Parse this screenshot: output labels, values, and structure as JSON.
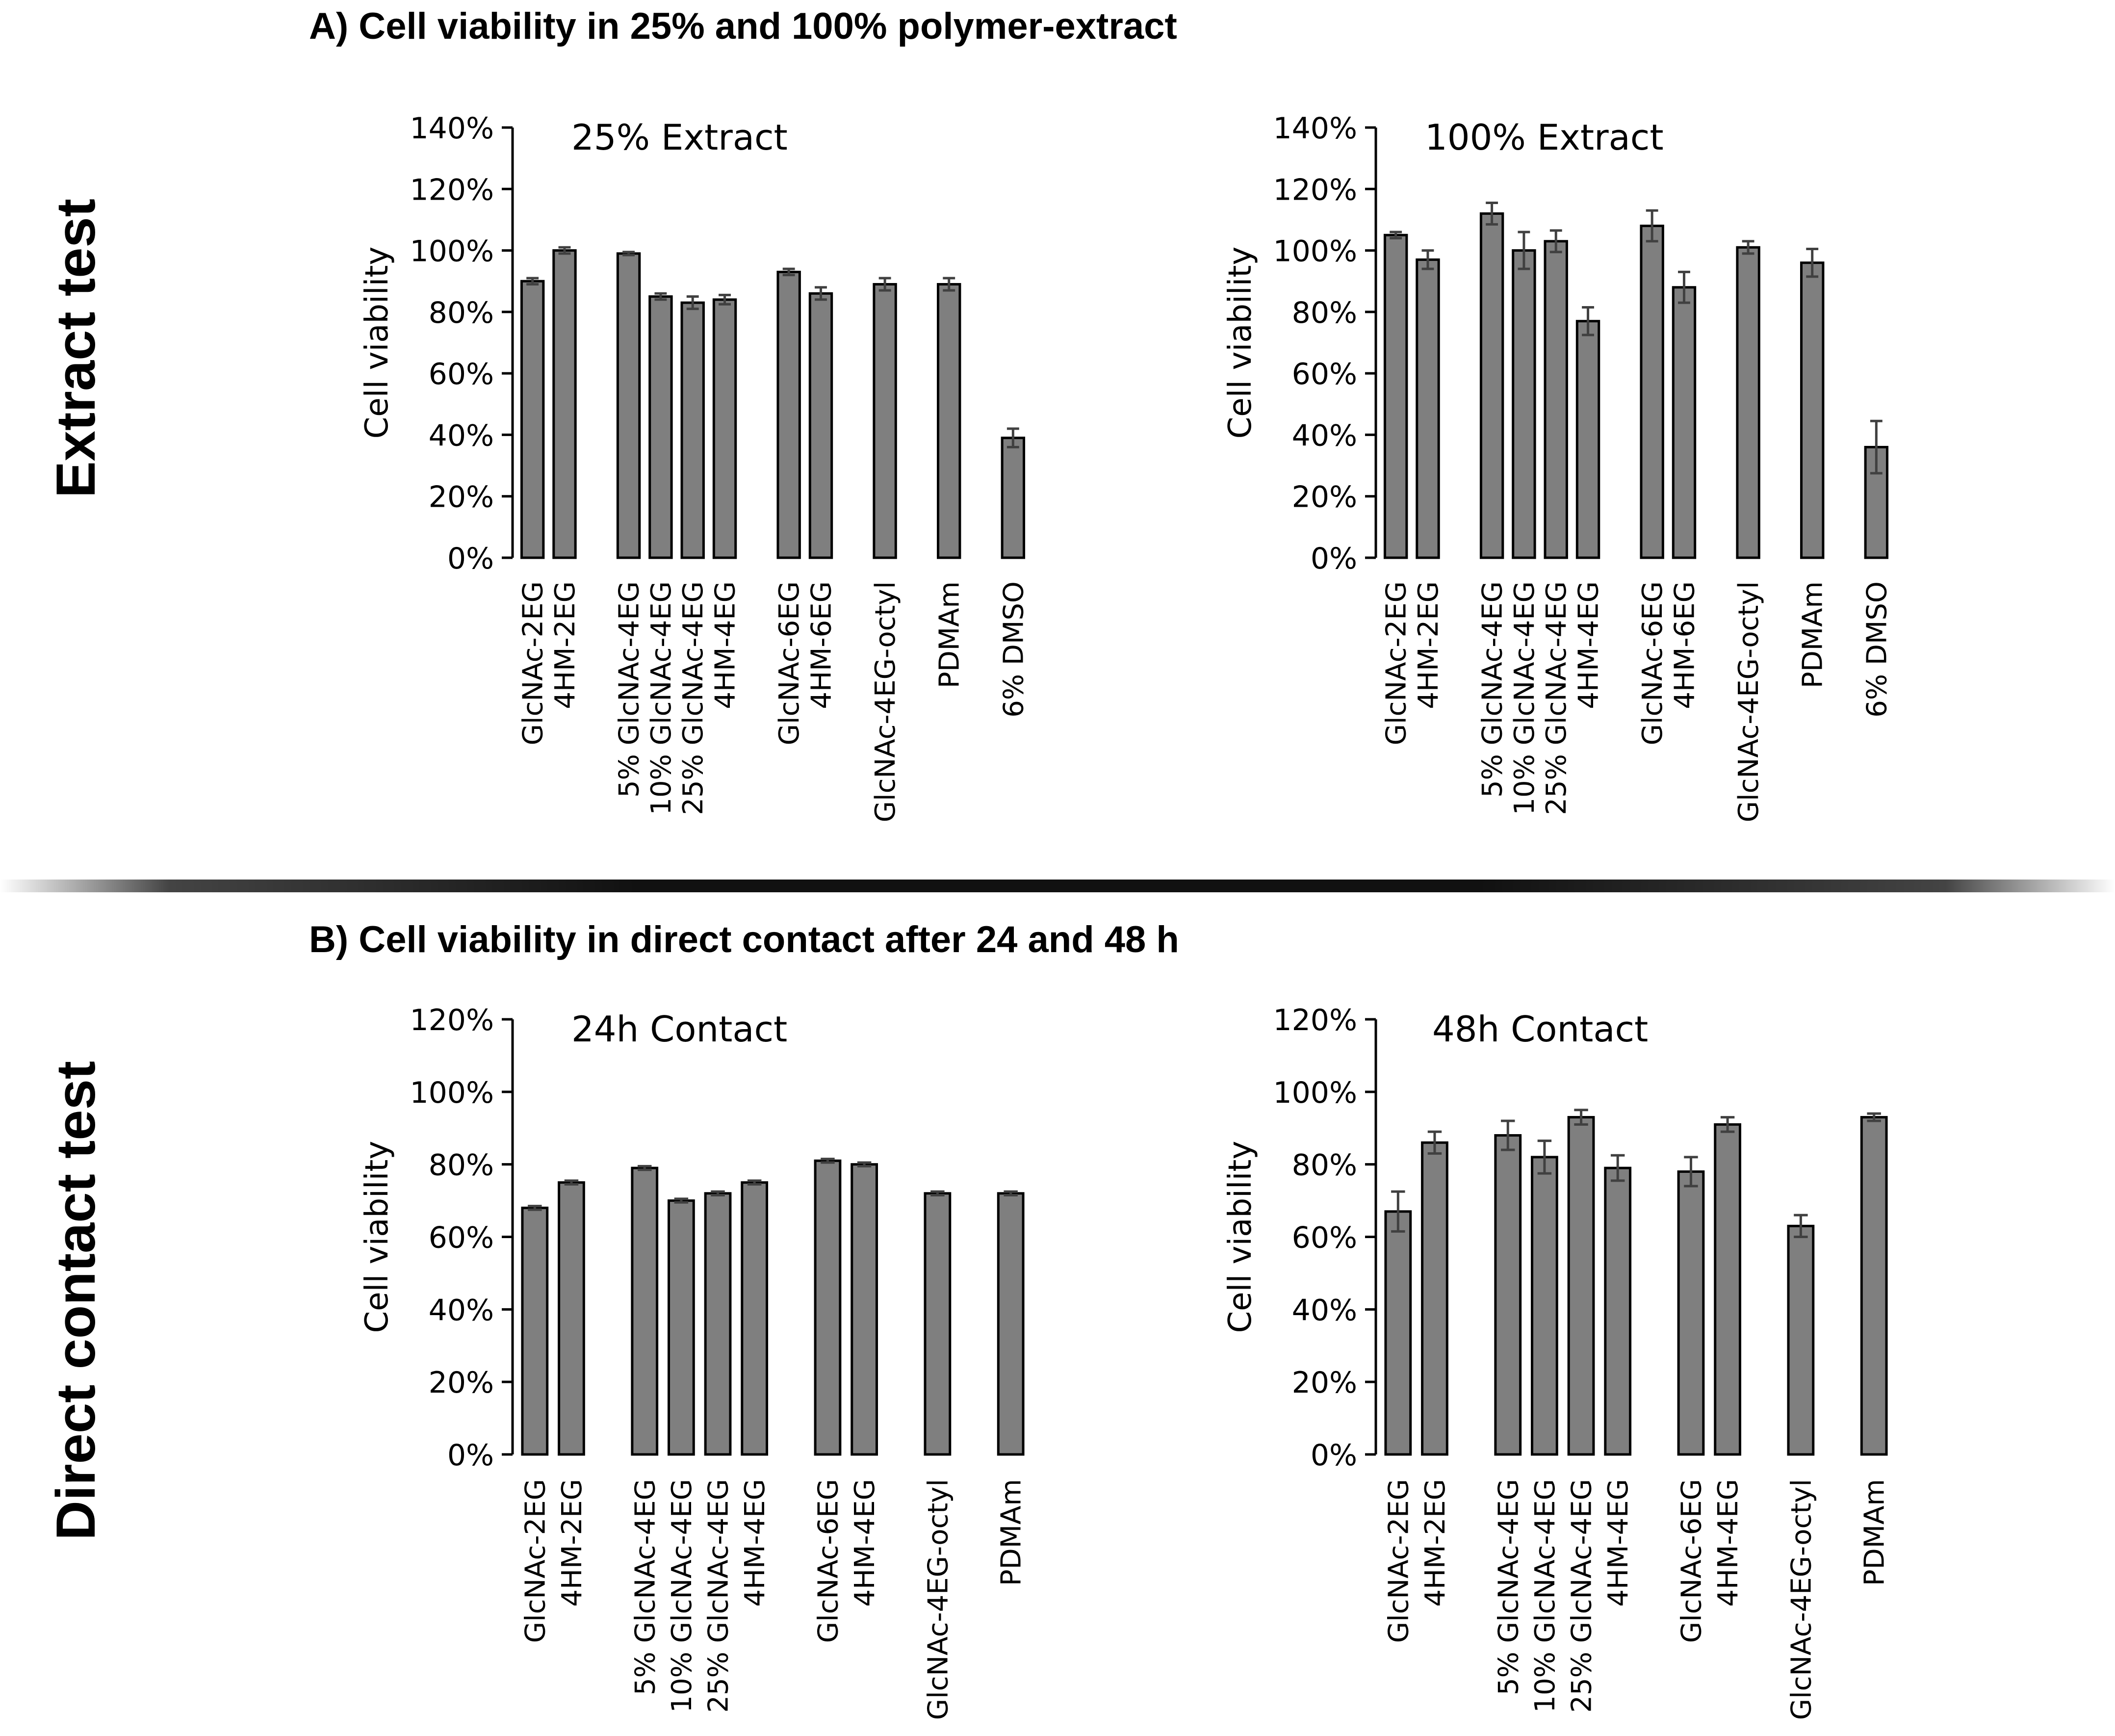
{
  "section_a": {
    "title": "A) Cell viability in 25% and 100% polymer-extract",
    "side_label": "Extract test"
  },
  "section_b": {
    "title": "B) Cell viability in direct contact after 24 and 48 h",
    "side_label": "Direct contact test"
  },
  "colors": {
    "bar_fill": "#7f7f7f",
    "bar_stroke": "#000000",
    "error_bar": "#404040",
    "axis": "#000000"
  },
  "chart_data": [
    {
      "type": "bar",
      "title": "25% Extract",
      "ylabel": "Cell viability",
      "ylim": [
        0,
        140
      ],
      "yticks": [
        0,
        20,
        40,
        60,
        80,
        100,
        120,
        140
      ],
      "ytick_labels": [
        "0%",
        "20%",
        "40%",
        "60%",
        "80%",
        "100%",
        "120%",
        "140%"
      ],
      "categories": [
        "GlcNAc-2EG",
        "4HM-2EG",
        "5% GlcNAc-4EG",
        "10% GlcNAc-4EG",
        "25% GlcNAc-4EG",
        "4HM-4EG",
        "GlcNAc-6EG",
        "4HM-6EG",
        "GlcNAc-4EG-octyl",
        "PDMAm",
        "6% DMSO"
      ],
      "groups": [
        2,
        4,
        2,
        1,
        1,
        1
      ],
      "values": [
        90,
        100,
        99,
        85,
        83,
        84,
        93,
        86,
        89,
        89,
        39
      ],
      "errors": [
        1,
        1,
        0.5,
        1,
        2,
        1.5,
        1,
        2,
        2,
        2,
        3
      ],
      "grid": false
    },
    {
      "type": "bar",
      "title": "100% Extract",
      "ylabel": "Cell viability",
      "ylim": [
        0,
        140
      ],
      "yticks": [
        0,
        20,
        40,
        60,
        80,
        100,
        120,
        140
      ],
      "ytick_labels": [
        "0%",
        "20%",
        "40%",
        "60%",
        "80%",
        "100%",
        "120%",
        "140%"
      ],
      "categories": [
        "GlcNAc-2EG",
        "4HM-2EG",
        "5% GlcNAc-4EG",
        "10% GlcNAc-4EG",
        "25% GlcNAc-4EG",
        "4HM-4EG",
        "GlcNAc-6EG",
        "4HM-6EG",
        "GlcNAc-4EG-octyl",
        "PDMAm",
        "6% DMSO"
      ],
      "groups": [
        2,
        4,
        2,
        1,
        1,
        1
      ],
      "values": [
        105,
        97,
        112,
        100,
        103,
        77,
        108,
        88,
        101,
        96,
        36
      ],
      "errors": [
        1,
        3,
        3.5,
        6,
        3.5,
        4.5,
        5,
        5,
        2,
        4.5,
        8.5
      ],
      "grid": false
    },
    {
      "type": "bar",
      "title": "24h Contact",
      "ylabel": "Cell viability",
      "ylim": [
        0,
        120
      ],
      "yticks": [
        0,
        20,
        40,
        60,
        80,
        100,
        120
      ],
      "ytick_labels": [
        "0%",
        "20%",
        "40%",
        "60%",
        "80%",
        "100%",
        "120%"
      ],
      "categories": [
        "GlcNAc-2EG",
        "4HM-2EG",
        "5% GlcNAc-4EG",
        "10% GlcNAc-4EG",
        "25% GlcNAc-4EG",
        "4HM-4EG",
        "GlcNAc-6EG",
        "4HM-4EG",
        "GlcNAc-4EG-octyl",
        "PDMAm"
      ],
      "groups": [
        2,
        4,
        2,
        1,
        1
      ],
      "values": [
        68,
        75,
        79,
        70,
        72,
        75,
        81,
        80,
        72,
        72
      ],
      "errors": [
        0.5,
        0.5,
        0.5,
        0.5,
        0.5,
        0.5,
        0.5,
        0.5,
        0.5,
        0.5
      ],
      "grid": false
    },
    {
      "type": "bar",
      "title": "48h Contact",
      "ylabel": "Cell viability",
      "ylim": [
        0,
        120
      ],
      "yticks": [
        0,
        20,
        40,
        60,
        80,
        100,
        120
      ],
      "ytick_labels": [
        "0%",
        "20%",
        "40%",
        "60%",
        "80%",
        "100%",
        "120%"
      ],
      "categories": [
        "GlcNAc-2EG",
        "4HM-2EG",
        "5% GlcNAc-4EG",
        "10% GlcNAc-4EG",
        "25% GlcNAc-4EG",
        "4HM-4EG",
        "GlcNAc-6EG",
        "4HM-4EG",
        "GlcNAc-4EG-octyl",
        "PDMAm"
      ],
      "groups": [
        2,
        4,
        2,
        1,
        1
      ],
      "values": [
        67,
        86,
        88,
        82,
        93,
        79,
        78,
        91,
        63,
        93
      ],
      "errors": [
        5.5,
        3,
        4,
        4.5,
        2,
        3.5,
        4,
        2,
        3,
        1
      ],
      "grid": false
    }
  ]
}
